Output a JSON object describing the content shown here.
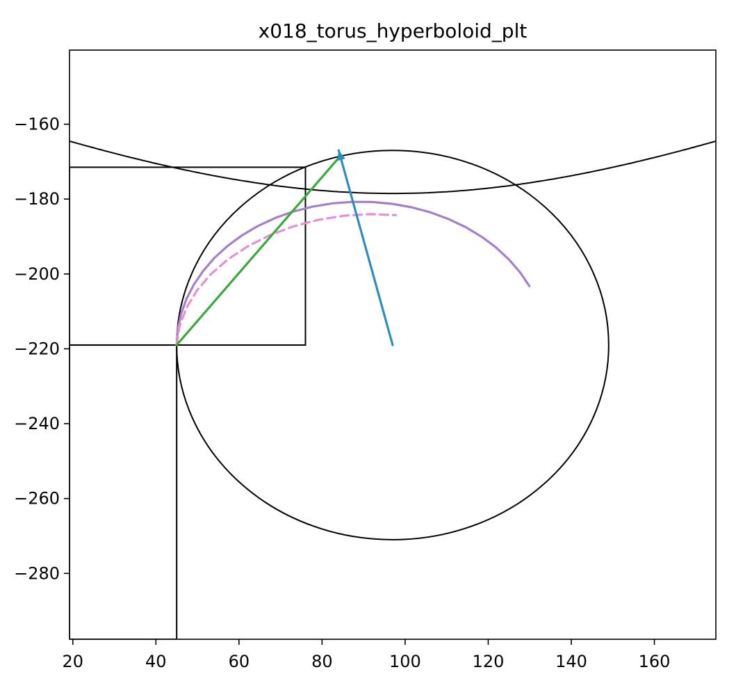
{
  "chart_data": {
    "type": "line",
    "title": "x018_torus_hyperboloid_plt",
    "xlabel": "",
    "ylabel": "",
    "xlim": [
      19.2,
      174.8
    ],
    "ylim": [
      -297.6,
      -140.2
    ],
    "x_ticks": [
      20,
      40,
      60,
      80,
      100,
      120,
      140,
      160
    ],
    "y_ticks": [
      -160,
      -180,
      -200,
      -220,
      -240,
      -260,
      -280
    ],
    "grid": false,
    "legend": "none",
    "shapes": {
      "ellipse": {
        "center": [
          97,
          -219
        ],
        "semi_axes": [
          52,
          52
        ],
        "color": "#000000"
      },
      "hyperbola_branch": {
        "center": [
          97,
          -219
        ],
        "semi_axes": [
          0,
          40.5
        ],
        "upper_branch": true,
        "color": "#000000"
      },
      "rect_small": {
        "x": [
          19.2,
          76
        ],
        "y": [
          -219,
          -171.5
        ],
        "color": "#000000"
      },
      "rect_tall": {
        "x": [
          19.2,
          45
        ],
        "y": [
          -297.6,
          -219
        ],
        "color": "#000000"
      }
    },
    "series": [
      {
        "kind": "arc",
        "color": "#a57fc8",
        "points": [
          [
            45,
            -219
          ],
          [
            45.26,
            -214.84
          ],
          [
            46.05,
            -210.73
          ],
          [
            47.35,
            -206.71
          ],
          [
            49.14,
            -202.84
          ],
          [
            51.4,
            -199.16
          ],
          [
            54.1,
            -195.71
          ],
          [
            57.23,
            -192.54
          ],
          [
            60.74,
            -189.68
          ],
          [
            64.59,
            -187.17
          ],
          [
            68.75,
            -185.05
          ],
          [
            73.14,
            -183.32
          ],
          [
            77.72,
            -182.03
          ],
          [
            82.44,
            -181.16
          ],
          [
            87.24,
            -180.75
          ],
          [
            92.06,
            -180.79
          ],
          [
            96.85,
            -181.27
          ],
          [
            101.55,
            -182.2
          ],
          [
            106.1,
            -183.56
          ],
          [
            110.46,
            -185.34
          ],
          [
            114.57,
            -187.5
          ],
          [
            118.39,
            -190.04
          ],
          [
            121.87,
            -192.92
          ],
          [
            124.97,
            -196.11
          ],
          [
            127.66,
            -199.57
          ],
          [
            129.92,
            -203.27
          ]
        ]
      },
      {
        "kind": "dashed-arc",
        "color": "#e88fd0",
        "points": [
          [
            45,
            -219
          ],
          [
            45.7,
            -213.92
          ],
          [
            47.38,
            -209.01
          ],
          [
            49.94,
            -204.35
          ],
          [
            53.3,
            -200.01
          ],
          [
            57.4,
            -196.07
          ],
          [
            62.14,
            -192.6
          ],
          [
            67.41,
            -189.66
          ],
          [
            73.1,
            -187.29
          ],
          [
            79.1,
            -185.54
          ],
          [
            85.3,
            -184.45
          ],
          [
            91.57,
            -184.03
          ],
          [
            97.79,
            -184.3
          ]
        ]
      },
      {
        "kind": "chord",
        "color": "#3aa83a",
        "points": [
          [
            45,
            -219
          ],
          [
            84,
            -169
          ]
        ]
      },
      {
        "kind": "arrow",
        "color": "#2b8cbe",
        "points": [
          [
            97,
            -219
          ],
          [
            84,
            -167
          ]
        ]
      }
    ]
  }
}
